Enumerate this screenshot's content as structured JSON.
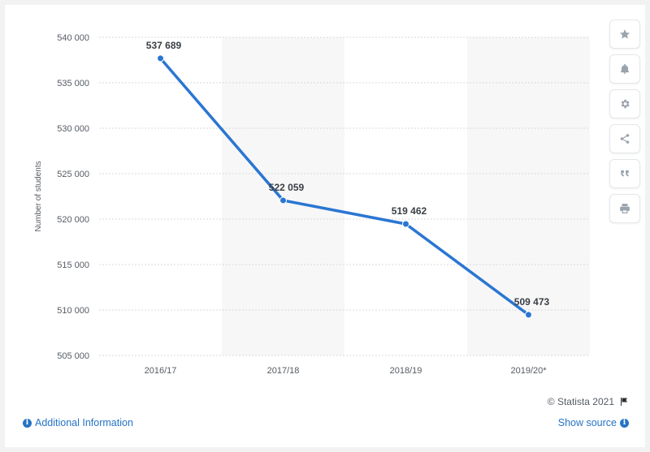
{
  "chart_data": {
    "type": "line",
    "categories": [
      "2016/17",
      "2017/18",
      "2018/19",
      "2019/20*"
    ],
    "series": [
      {
        "values": [
          537689,
          522059,
          519462,
          509473
        ],
        "color": "#2a76d2"
      }
    ],
    "data_labels": [
      "537 689",
      "522 059",
      "519 462",
      "509 473"
    ],
    "ylabel": "Number of students",
    "ylim": [
      505000,
      540000
    ],
    "yticks": [
      505000,
      510000,
      515000,
      520000,
      525000,
      530000,
      535000,
      540000
    ],
    "ytick_labels": [
      "505 000",
      "510 000",
      "515 000",
      "520 000",
      "525 000",
      "530 000",
      "535 000",
      "540 000"
    ],
    "grid": true,
    "alternating_column_shading": true
  },
  "footer": {
    "credit": "© Statista 2021",
    "additional_info": "Additional Information",
    "show_source": "Show source"
  },
  "toolbar": {
    "icons": [
      "star-icon",
      "bell-icon",
      "gear-icon",
      "share-icon",
      "quote-icon",
      "print-icon"
    ]
  },
  "colors": {
    "line": "#2a76d2",
    "link": "#2574c4",
    "band": "#f7f7f7"
  }
}
